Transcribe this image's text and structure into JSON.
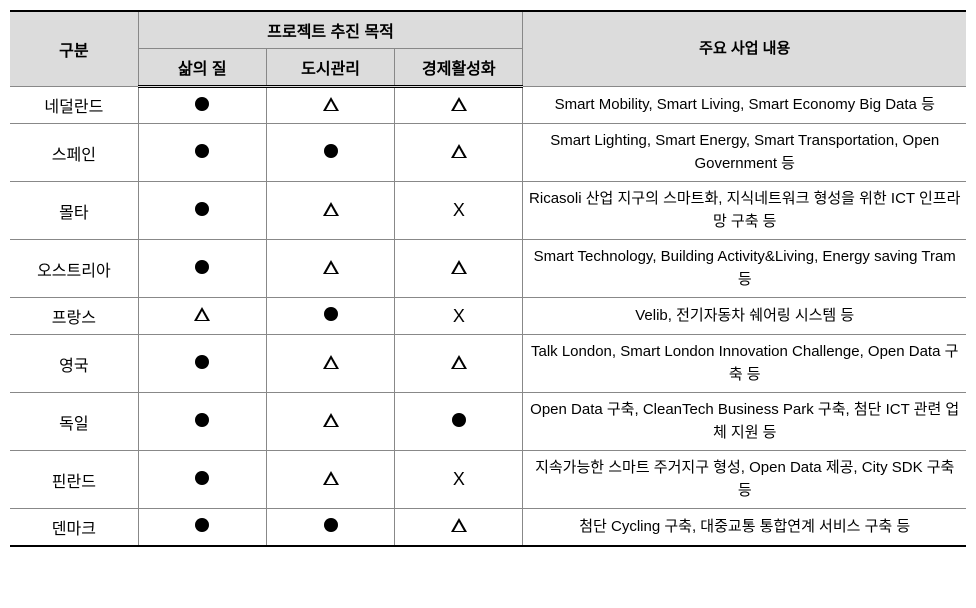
{
  "headers": {
    "category": "구분",
    "purpose_group": "프로젝트 추진 목적",
    "purpose_quality": "삶의 질",
    "purpose_city": "도시관리",
    "purpose_economy": "경제활성화",
    "content": "주요 사업 내용"
  },
  "symbols": {
    "circle": "●",
    "triangle": "△",
    "x": "X"
  },
  "rows": [
    {
      "country": "네덜란드",
      "quality": "circle",
      "city": "triangle",
      "economy": "triangle",
      "content": "Smart Mobility, Smart Living, Smart Economy Big Data 등"
    },
    {
      "country": "스페인",
      "quality": "circle",
      "city": "circle",
      "economy": "triangle",
      "content": "Smart Lighting, Smart Energy, Smart Transportation, Open Government 등"
    },
    {
      "country": "몰타",
      "quality": "circle",
      "city": "triangle",
      "economy": "x",
      "content": "Ricasoli 산업 지구의 스마트화, 지식네트워크 형성을 위한 ICT 인프라 망 구축 등"
    },
    {
      "country": "오스트리아",
      "quality": "circle",
      "city": "triangle",
      "economy": "triangle",
      "content": "Smart Technology, Building Activity&Living, Energy saving Tram 등"
    },
    {
      "country": "프랑스",
      "quality": "triangle",
      "city": "circle",
      "economy": "x",
      "content": "Velib, 전기자동차 쉐어링 시스템 등"
    },
    {
      "country": "영국",
      "quality": "circle",
      "city": "triangle",
      "economy": "triangle",
      "content": "Talk London, Smart London Innovation Challenge, Open Data 구축 등"
    },
    {
      "country": "독일",
      "quality": "circle",
      "city": "triangle",
      "economy": "circle",
      "content": "Open Data 구축, CleanTech Business Park 구축, 첨단 ICT 관련 업체 지원 등"
    },
    {
      "country": "핀란드",
      "quality": "circle",
      "city": "triangle",
      "economy": "x",
      "content": "지속가능한 스마트 주거지구 형성, Open Data 제공, City SDK 구축 등"
    },
    {
      "country": "덴마크",
      "quality": "circle",
      "city": "circle",
      "economy": "triangle",
      "content": "첨단 Cycling 구축, 대중교통 통합연계 서비스 구축 등"
    }
  ]
}
